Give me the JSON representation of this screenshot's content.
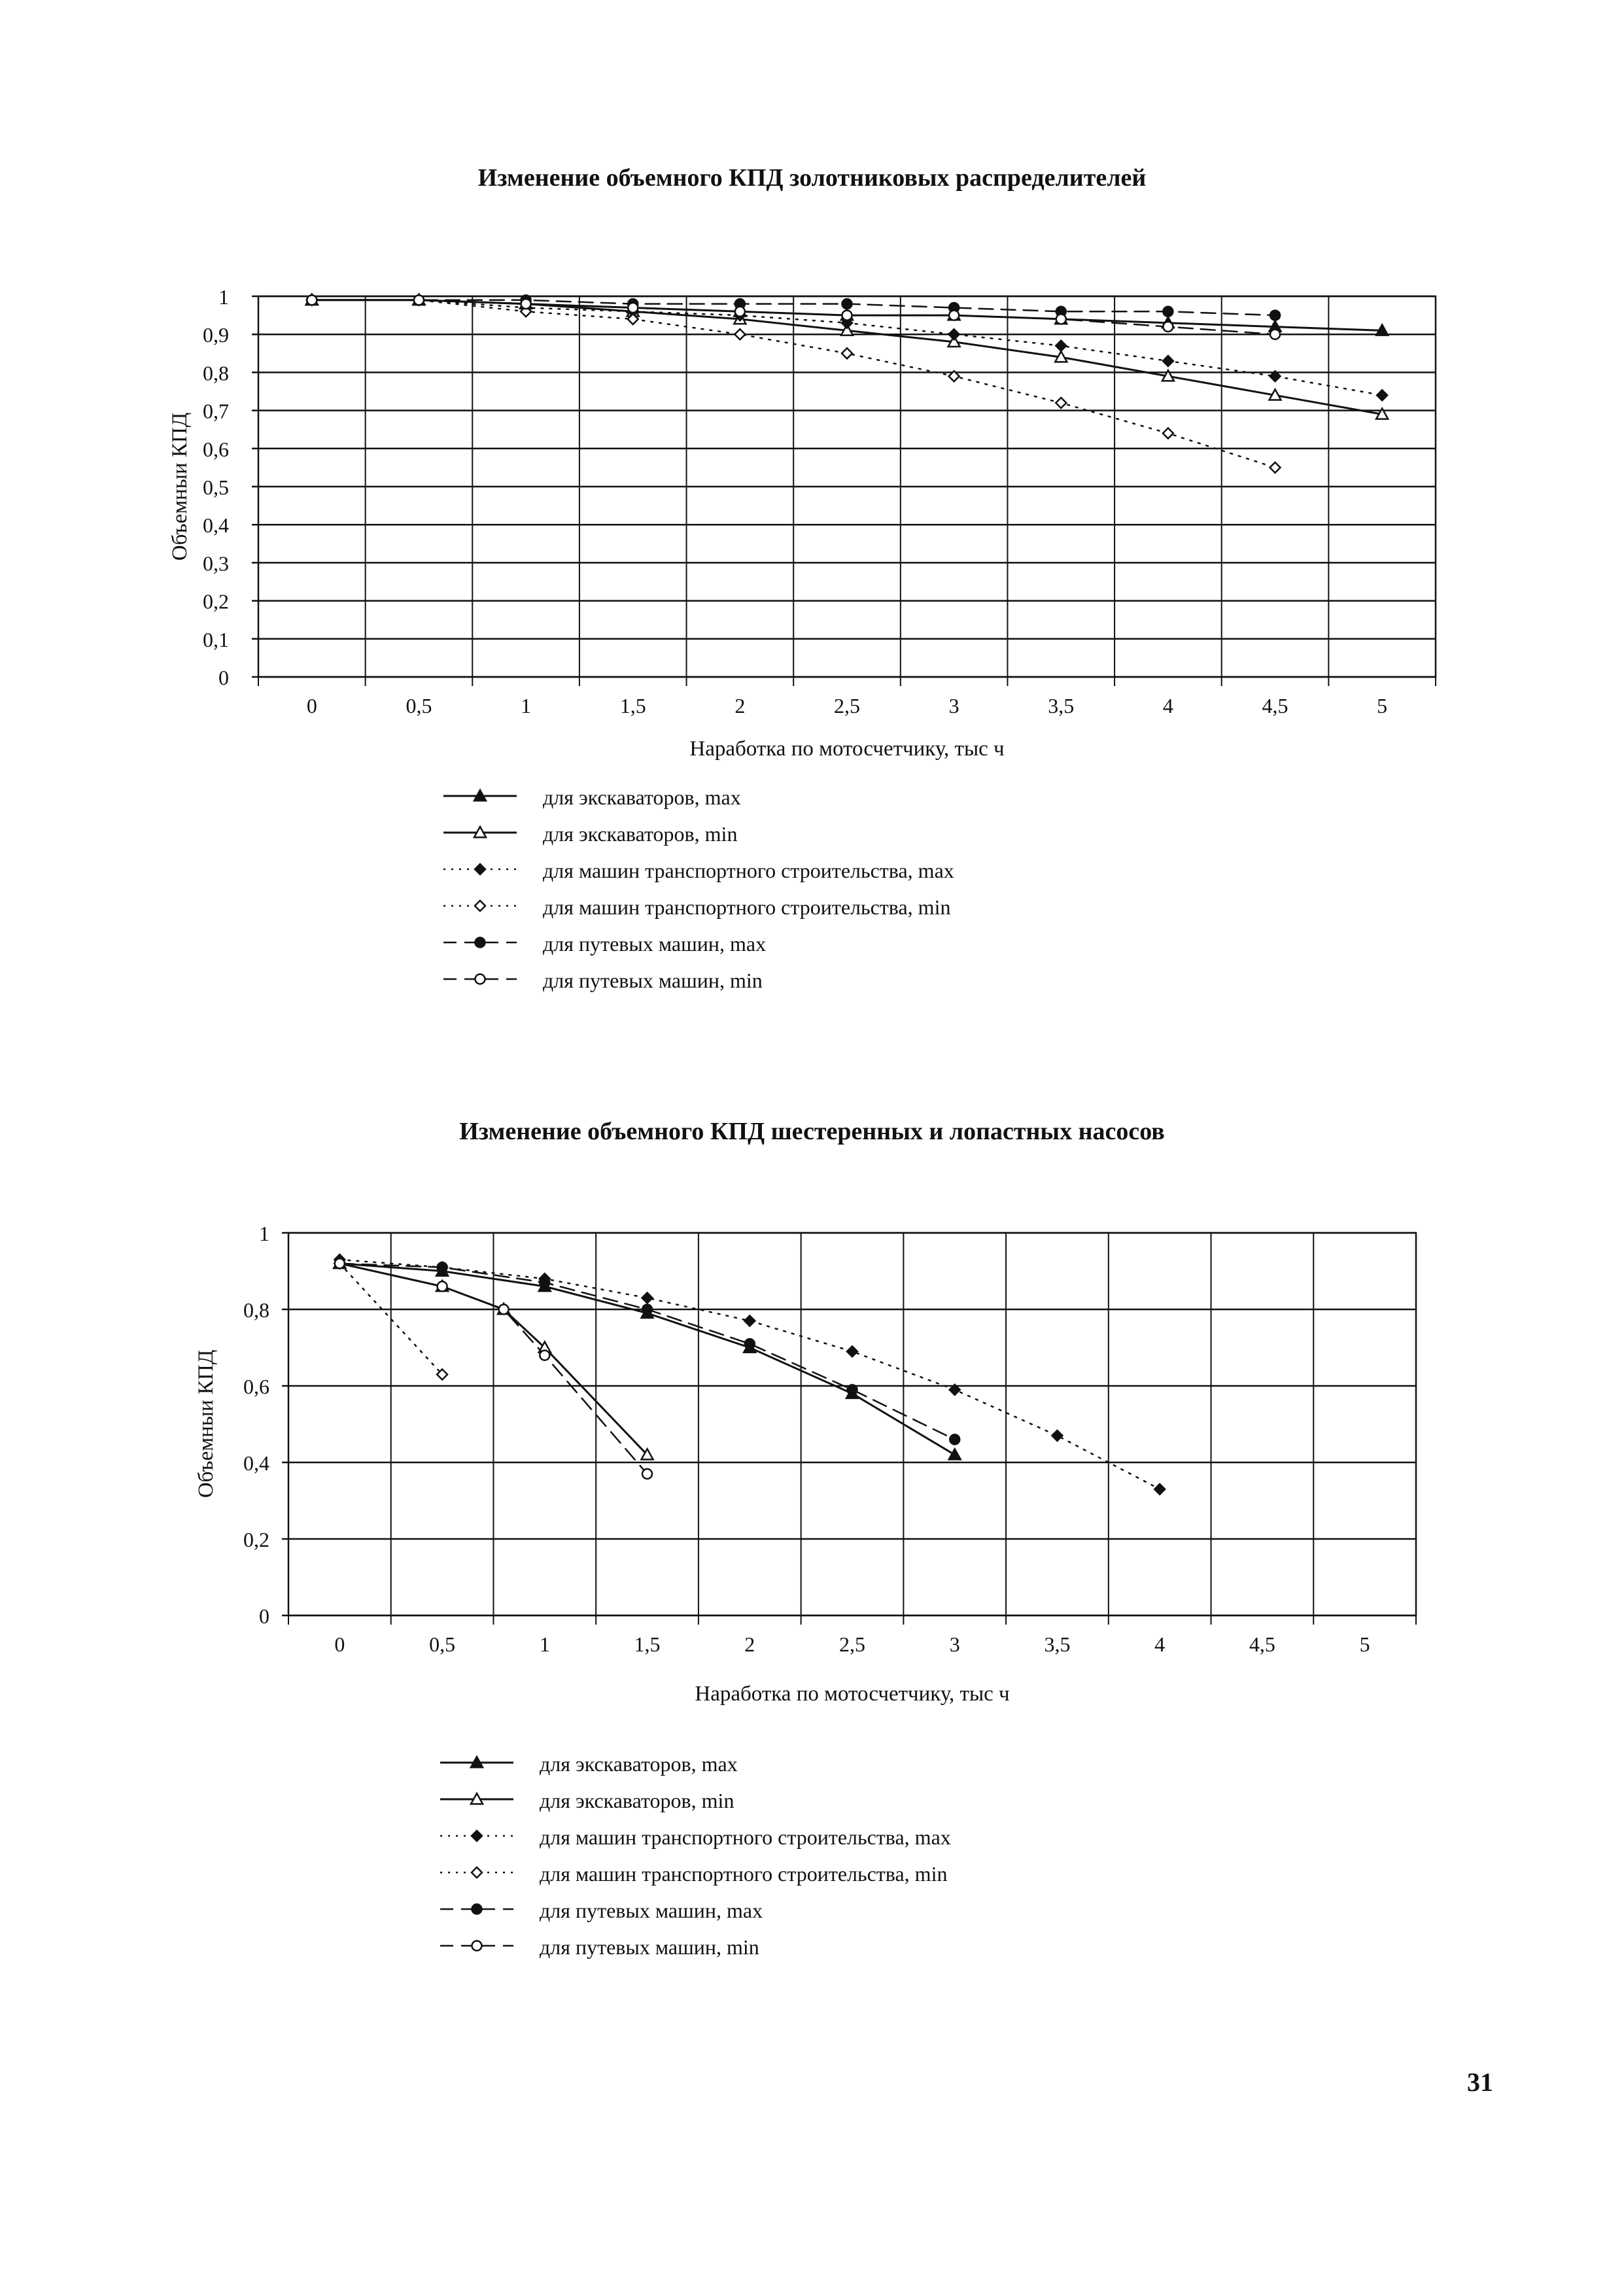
{
  "page_number": "31",
  "chart_data": [
    {
      "type": "line",
      "title": "Изменение объемного КПД золотниковых распределителей",
      "xlabel": "Наработка по мотосчетчику, тыс ч",
      "ylabel": "Объемныи КПД",
      "x_ticks": [
        "0",
        "0,5",
        "1",
        "1,5",
        "2",
        "2,5",
        "3",
        "3,5",
        "4",
        "4,5",
        "5"
      ],
      "y_ticks": [
        "0",
        "0,1",
        "0,2",
        "0,3",
        "0,4",
        "0,5",
        "0,6",
        "0,7",
        "0,8",
        "0,9",
        "1"
      ],
      "xlim": [
        -0.25,
        5.25
      ],
      "ylim": [
        0,
        1
      ],
      "grid": true,
      "legend_position": "below",
      "series": [
        {
          "name": "для экскаваторов, max",
          "style": "solid",
          "marker": "triangle-filled",
          "x": [
            0,
            0.5,
            1,
            1.5,
            2,
            2.5,
            3,
            3.5,
            4,
            4.5,
            5
          ],
          "y": [
            0.99,
            0.99,
            0.98,
            0.97,
            0.96,
            0.95,
            0.95,
            0.94,
            0.93,
            0.92,
            0.91
          ]
        },
        {
          "name": "для экскаваторов, min",
          "style": "solid",
          "marker": "triangle-open",
          "x": [
            0,
            0.5,
            1,
            1.5,
            2,
            2.5,
            3,
            3.5,
            4,
            4.5,
            5
          ],
          "y": [
            0.99,
            0.99,
            0.98,
            0.96,
            0.94,
            0.91,
            0.88,
            0.84,
            0.79,
            0.74,
            0.69
          ]
        },
        {
          "name": "для машин транспортного строительства, max",
          "style": "dotted",
          "marker": "diamond-filled",
          "x": [
            0,
            0.5,
            1,
            1.5,
            2,
            2.5,
            3,
            3.5,
            4,
            4.5,
            5
          ],
          "y": [
            0.99,
            0.99,
            0.97,
            0.96,
            0.95,
            0.93,
            0.9,
            0.87,
            0.83,
            0.79,
            0.74
          ]
        },
        {
          "name": "для машин транспортного строительства, min",
          "style": "dotted",
          "marker": "diamond-open",
          "x": [
            0,
            0.5,
            1,
            1.5,
            2,
            2.5,
            3,
            3.5,
            4,
            4.5
          ],
          "y": [
            0.99,
            0.99,
            0.96,
            0.94,
            0.9,
            0.85,
            0.79,
            0.72,
            0.64,
            0.55
          ]
        },
        {
          "name": "для путевых машин, max",
          "style": "dashed",
          "marker": "circle-filled",
          "x": [
            0,
            0.5,
            1,
            1.5,
            2,
            2.5,
            3,
            3.5,
            4,
            4.5
          ],
          "y": [
            0.99,
            0.99,
            0.99,
            0.98,
            0.98,
            0.98,
            0.97,
            0.96,
            0.96,
            0.95
          ]
        },
        {
          "name": "для путевых машин, min",
          "style": "dashed",
          "marker": "circle-open",
          "x": [
            0,
            0.5,
            1,
            1.5,
            2,
            2.5,
            3,
            3.5,
            4,
            4.5
          ],
          "y": [
            0.99,
            0.99,
            0.98,
            0.97,
            0.96,
            0.95,
            0.95,
            0.94,
            0.92,
            0.9
          ]
        }
      ]
    },
    {
      "type": "line",
      "title": "Изменение объемного КПД шестеренных и лопастных насосов",
      "xlabel": "Наработка по мотосчетчику, тыс ч",
      "ylabel": "Объемныи КПД",
      "x_ticks": [
        "0",
        "0,5",
        "1",
        "1,5",
        "2",
        "2,5",
        "3",
        "3,5",
        "4",
        "4,5",
        "5"
      ],
      "y_ticks": [
        "0",
        "0,2",
        "0,4",
        "0,6",
        "0,8",
        "1"
      ],
      "xlim": [
        -0.25,
        5.25
      ],
      "ylim": [
        0,
        1
      ],
      "grid": true,
      "legend_position": "below",
      "series": [
        {
          "name": "для экскаваторов, max",
          "style": "solid",
          "marker": "triangle-filled",
          "x": [
            0,
            0.5,
            1,
            1.5,
            2,
            2.5,
            3
          ],
          "y": [
            0.92,
            0.9,
            0.86,
            0.79,
            0.7,
            0.58,
            0.42
          ]
        },
        {
          "name": "для экскаваторов, min",
          "style": "solid",
          "marker": "triangle-open",
          "x": [
            0,
            0.5,
            0.8,
            1,
            1.5
          ],
          "y": [
            0.92,
            0.86,
            0.8,
            0.7,
            0.42
          ]
        },
        {
          "name": "для машин транспортного строительства, max",
          "style": "dotted",
          "marker": "diamond-filled",
          "x": [
            0,
            0.5,
            1,
            1.5,
            2,
            2.5,
            3,
            3.5,
            4
          ],
          "y": [
            0.93,
            0.91,
            0.88,
            0.83,
            0.77,
            0.69,
            0.59,
            0.47,
            0.33
          ]
        },
        {
          "name": "для машин транспортного строительства, min",
          "style": "dotted",
          "marker": "diamond-open",
          "x": [
            0,
            0.5
          ],
          "y": [
            0.92,
            0.63
          ]
        },
        {
          "name": "для путевых машин, max",
          "style": "dashed",
          "marker": "circle-filled",
          "x": [
            0,
            0.5,
            1,
            1.5,
            2,
            2.5,
            3
          ],
          "y": [
            0.92,
            0.91,
            0.87,
            0.8,
            0.71,
            0.59,
            0.46
          ]
        },
        {
          "name": "для путевых машин, min",
          "style": "dashed",
          "marker": "circle-open",
          "x": [
            0,
            0.5,
            0.8,
            1,
            1.5
          ],
          "y": [
            0.92,
            0.86,
            0.8,
            0.68,
            0.37
          ]
        }
      ]
    }
  ]
}
